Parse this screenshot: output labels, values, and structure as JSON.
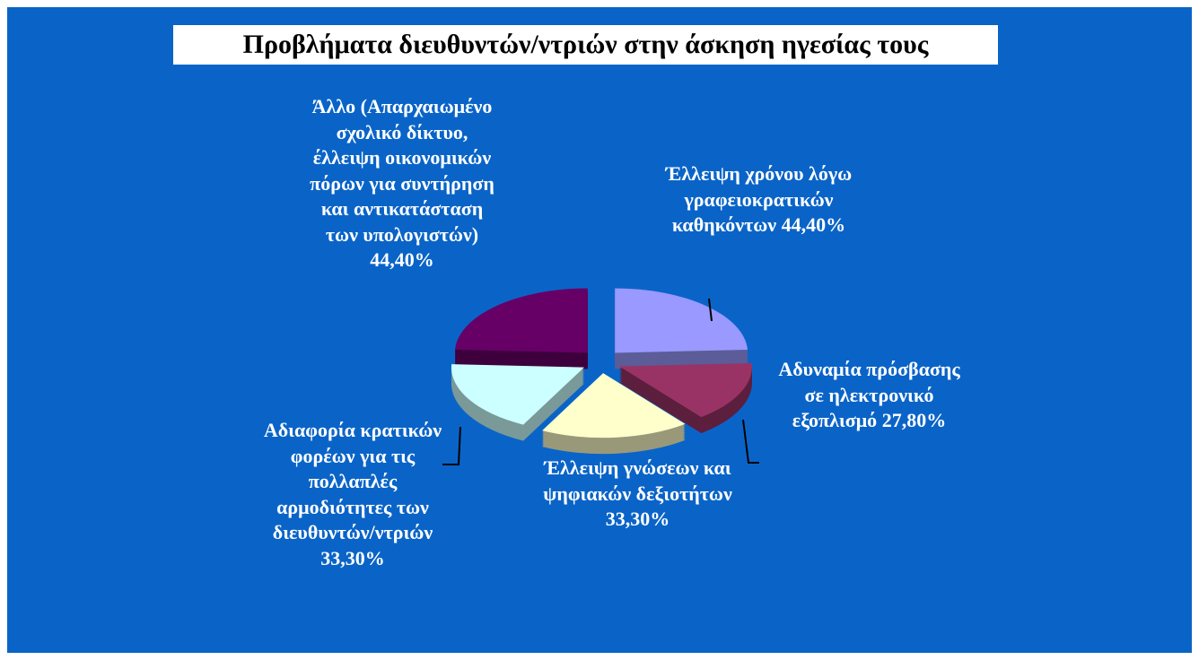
{
  "chart_data": {
    "type": "pie",
    "title": "Προβλήματα διευθυντών/ντριών στην άσκηση ηγεσίας τους",
    "categories": [
      "Έλλειψη χρόνου λόγω γραφειοκρατικών καθηκόντων",
      "Αδυναμία πρόσβασης σε ηλεκτρονικό εξοπλισμό",
      "Έλλειψη γνώσεων και ψηφιακών δεξιοτήτων",
      "Αδιαφορία κρατικών φορέων για τις πολλαπλές αρμοδιότητες των διευθυντών/ντριών",
      "Άλλο (Απαρχαιωμένο σχολικό δίκτυο, έλλειψη οικονομικών πόρων για συντήρηση και αντικατάσταση των υπολογιστών)"
    ],
    "values": [
      44.4,
      27.8,
      33.3,
      33.3,
      44.4
    ],
    "value_labels": [
      "44,40%",
      "27,80%",
      "33,30%",
      "33,30%",
      "44,40%"
    ],
    "colors": [
      "#9999ff",
      "#993366",
      "#ffffcc",
      "#ccffff",
      "#660066"
    ]
  }
}
